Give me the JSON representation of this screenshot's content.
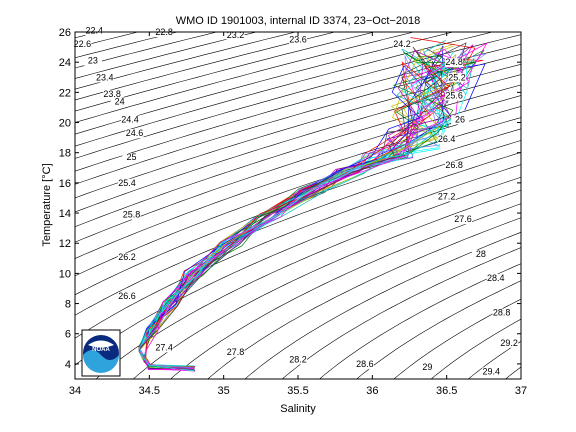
{
  "chart_data": {
    "type": "line",
    "title": "WMO ID 1901003, internal ID 3374, 23−Oct−2018",
    "xlabel": "Salinity",
    "ylabel": "Temperature [°C]",
    "xlim": [
      34,
      37
    ],
    "ylim": [
      3,
      26
    ],
    "xticks": [
      "34",
      "34.5",
      "35",
      "35.5",
      "36",
      "36.5",
      "37"
    ],
    "yticks": [
      "4",
      "6",
      "8",
      "10",
      "12",
      "14",
      "16",
      "18",
      "20",
      "22",
      "24",
      "26"
    ],
    "isopycnal_labels": [
      {
        "text": "22.4",
        "s": 34.13,
        "t": 25.9
      },
      {
        "text": "22.8",
        "s": 34.6,
        "t": 25.8
      },
      {
        "text": "23.2",
        "s": 35.08,
        "t": 25.6
      },
      {
        "text": "23.6",
        "s": 35.5,
        "t": 25.3
      },
      {
        "text": "24.2",
        "s": 36.2,
        "t": 25.0
      },
      {
        "text": "22.6",
        "s": 34.05,
        "t": 25.0
      },
      {
        "text": "23",
        "s": 34.12,
        "t": 23.9
      },
      {
        "text": "24.8",
        "s": 36.55,
        "t": 23.8
      },
      {
        "text": "23.4",
        "s": 34.2,
        "t": 22.8
      },
      {
        "text": "25.2",
        "s": 36.57,
        "t": 22.8
      },
      {
        "text": "23.8",
        "s": 34.25,
        "t": 21.7
      },
      {
        "text": "24",
        "s": 34.3,
        "t": 21.2
      },
      {
        "text": "25.6",
        "s": 36.55,
        "t": 21.6
      },
      {
        "text": "24.4",
        "s": 34.37,
        "t": 20.0
      },
      {
        "text": "26",
        "s": 36.59,
        "t": 20.0
      },
      {
        "text": "24.6",
        "s": 34.4,
        "t": 19.1
      },
      {
        "text": "26.4",
        "s": 36.5,
        "t": 18.7
      },
      {
        "text": "25",
        "s": 34.38,
        "t": 17.5
      },
      {
        "text": "26.8",
        "s": 36.55,
        "t": 17.0
      },
      {
        "text": "25.4",
        "s": 34.35,
        "t": 15.8
      },
      {
        "text": "27.2",
        "s": 36.5,
        "t": 14.9
      },
      {
        "text": "25.8",
        "s": 34.38,
        "t": 13.7
      },
      {
        "text": "27.6",
        "s": 36.61,
        "t": 13.4
      },
      {
        "text": "26.2",
        "s": 34.35,
        "t": 10.9
      },
      {
        "text": "28",
        "s": 36.73,
        "t": 11.1
      },
      {
        "text": "28.4",
        "s": 36.83,
        "t": 9.5
      },
      {
        "text": "26.6",
        "s": 34.35,
        "t": 8.3
      },
      {
        "text": "28.8",
        "s": 36.87,
        "t": 7.2
      },
      {
        "text": "29.2",
        "s": 36.92,
        "t": 5.2
      },
      {
        "text": "27.4",
        "s": 34.6,
        "t": 4.9
      },
      {
        "text": "27.8",
        "s": 35.08,
        "t": 4.6
      },
      {
        "text": "28.2",
        "s": 35.5,
        "t": 4.1
      },
      {
        "text": "28.6",
        "s": 35.95,
        "t": 3.8
      },
      {
        "text": "29",
        "s": 36.37,
        "t": 3.6
      },
      {
        "text": "29.4",
        "s": 36.8,
        "t": 3.3
      }
    ],
    "profile_envelope": [
      {
        "s": 34.8,
        "t": 3.7
      },
      {
        "s": 34.5,
        "t": 3.8
      },
      {
        "s": 34.47,
        "t": 4.3
      },
      {
        "s": 34.46,
        "t": 5.0
      },
      {
        "s": 34.52,
        "t": 6.3
      },
      {
        "s": 34.64,
        "t": 8.0
      },
      {
        "s": 34.8,
        "t": 10.0
      },
      {
        "s": 35.05,
        "t": 12.0
      },
      {
        "s": 35.3,
        "t": 13.8
      },
      {
        "s": 35.6,
        "t": 15.5
      },
      {
        "s": 35.85,
        "t": 16.8
      },
      {
        "s": 36.1,
        "t": 17.8
      },
      {
        "s": 36.25,
        "t": 19.0
      },
      {
        "s": 36.35,
        "t": 20.5
      },
      {
        "s": 36.4,
        "t": 22.5
      },
      {
        "s": 36.5,
        "t": 24.5
      },
      {
        "s": 36.62,
        "t": 25.5
      }
    ],
    "series_colors": [
      "#0000ff",
      "#008000",
      "#ff0000",
      "#00bfbf",
      "#bf00bf",
      "#bfbf00",
      "#404040",
      "#00ffff",
      "#ff00ff",
      "#8080ff"
    ],
    "grid": false
  },
  "logo": {
    "text": "NOAA"
  }
}
